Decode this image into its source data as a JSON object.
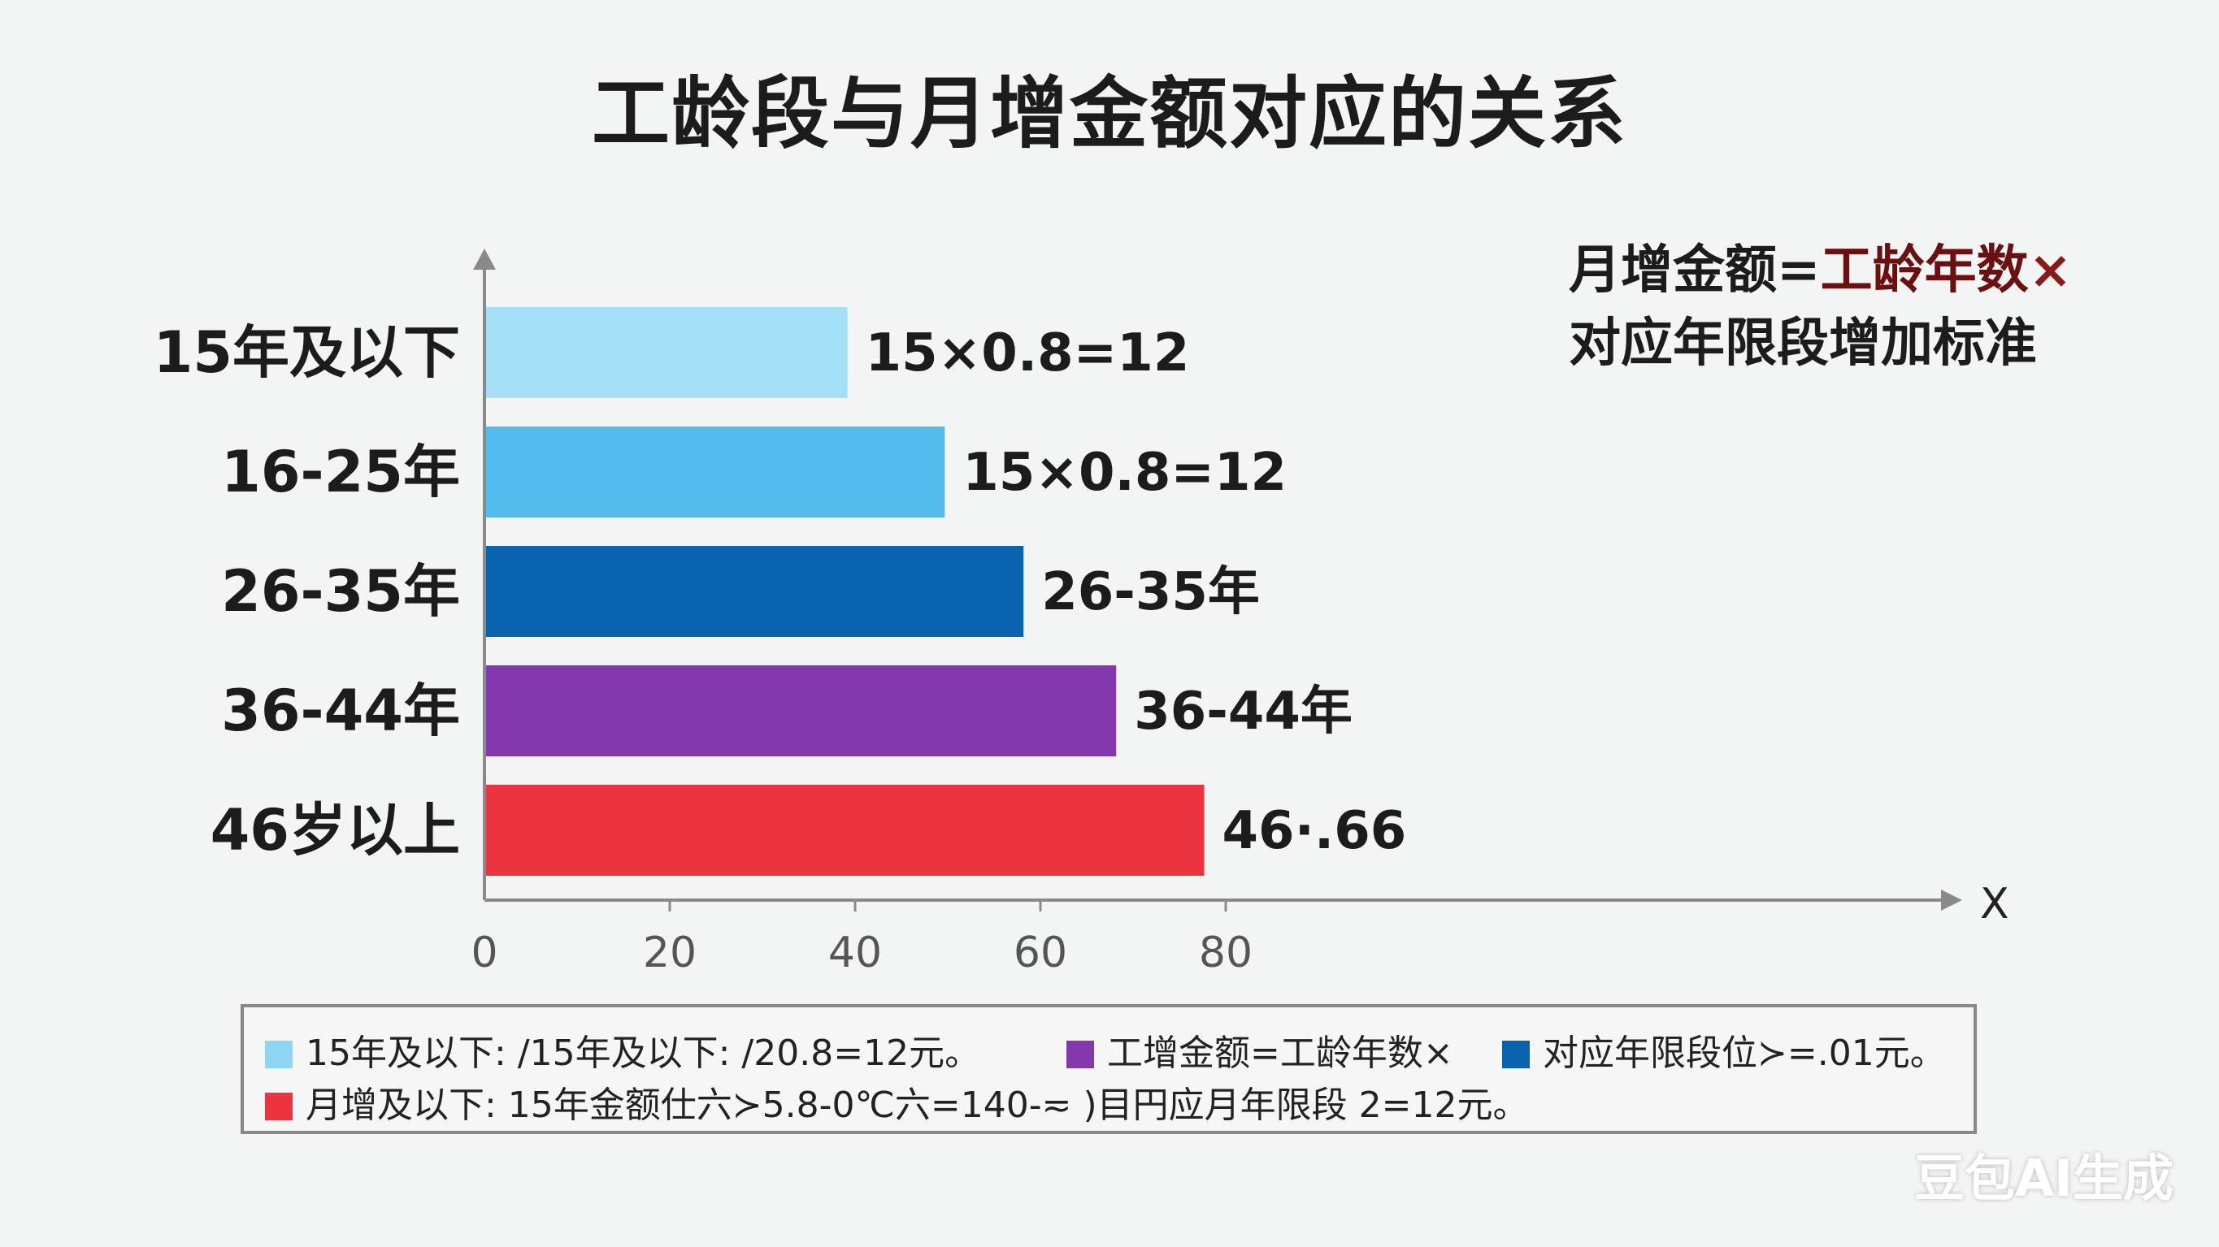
{
  "chart_data": {
    "type": "bar",
    "orientation": "horizontal",
    "title": "工龄段与月增金额对应的关系",
    "categories": [
      "15年及以下",
      "16-25年",
      "26-35年",
      "36-44年",
      "46岁以上"
    ],
    "values": [
      39,
      49.5,
      58,
      68,
      77.5
    ],
    "data_labels": [
      "15×0.8=12",
      "15×0.8=12",
      "26-35年",
      "36-44年",
      "46·.66"
    ],
    "colors": [
      "#a3dff6",
      "#53bcec",
      "#0962ad",
      "#8438ad",
      "#ec3440"
    ],
    "xlabel": "X",
    "xlim": [
      0,
      90
    ],
    "xticks": [
      0,
      20,
      40,
      60,
      80
    ],
    "grid": false,
    "legend_position": "bottom"
  },
  "formula": {
    "part1": "月增金额=",
    "part2": "工龄年数",
    "part3": "×",
    "line2": "对应年限段增加标准"
  },
  "legend": {
    "items": [
      {
        "label": "15年及以下: /15年及以下:   /20.8=12元。",
        "color": "#8fd6f2"
      },
      {
        "label": "工增金额=工龄年数×",
        "color": "#8438ad"
      },
      {
        "label": "对应年限段位≻=.01元。",
        "color": "#0962ad"
      },
      {
        "label": "月增及以下:    15年金额仕六≻5.8-0℃六=140-≂ )目円应月年限段 2=12元。",
        "color": "#ec3440"
      }
    ]
  },
  "watermark": "豆包AI生成"
}
